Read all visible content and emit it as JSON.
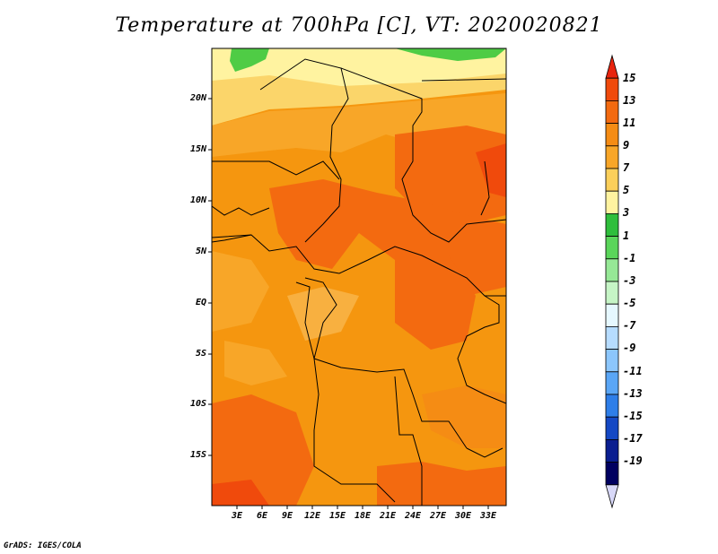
{
  "title": "Temperature at 700hPa [C], VT: 2020020821",
  "credit": "GrADS: IGES/COLA",
  "map": {
    "lat_labels": [
      "20N",
      "15N",
      "10N",
      "5N",
      "EQ",
      "5S",
      "10S",
      "15S"
    ],
    "lon_labels": [
      "3E",
      "6E",
      "9E",
      "12E",
      "15E",
      "18E",
      "21E",
      "24E",
      "27E",
      "30E",
      "33E"
    ]
  },
  "colorbar": {
    "labels": [
      "15",
      "13",
      "11",
      "9",
      "7",
      "5",
      "3",
      "1",
      "-1",
      "-3",
      "-5",
      "-7",
      "-9",
      "-11",
      "-13",
      "-15",
      "-17",
      "-19"
    ],
    "colors": [
      "#e8240e",
      "#f04a0c",
      "#f36a10",
      "#f58c14",
      "#f8a628",
      "#fbcf5a",
      "#fff3a0",
      "#2fbe3c",
      "#5ad55a",
      "#96e896",
      "#c6f5c6",
      "#e6f8ff",
      "#b6dcff",
      "#8cc6fc",
      "#5aa6f6",
      "#2e7ee8",
      "#1448c4",
      "#0a1e90",
      "#000060",
      "#d8d8f8"
    ]
  }
}
